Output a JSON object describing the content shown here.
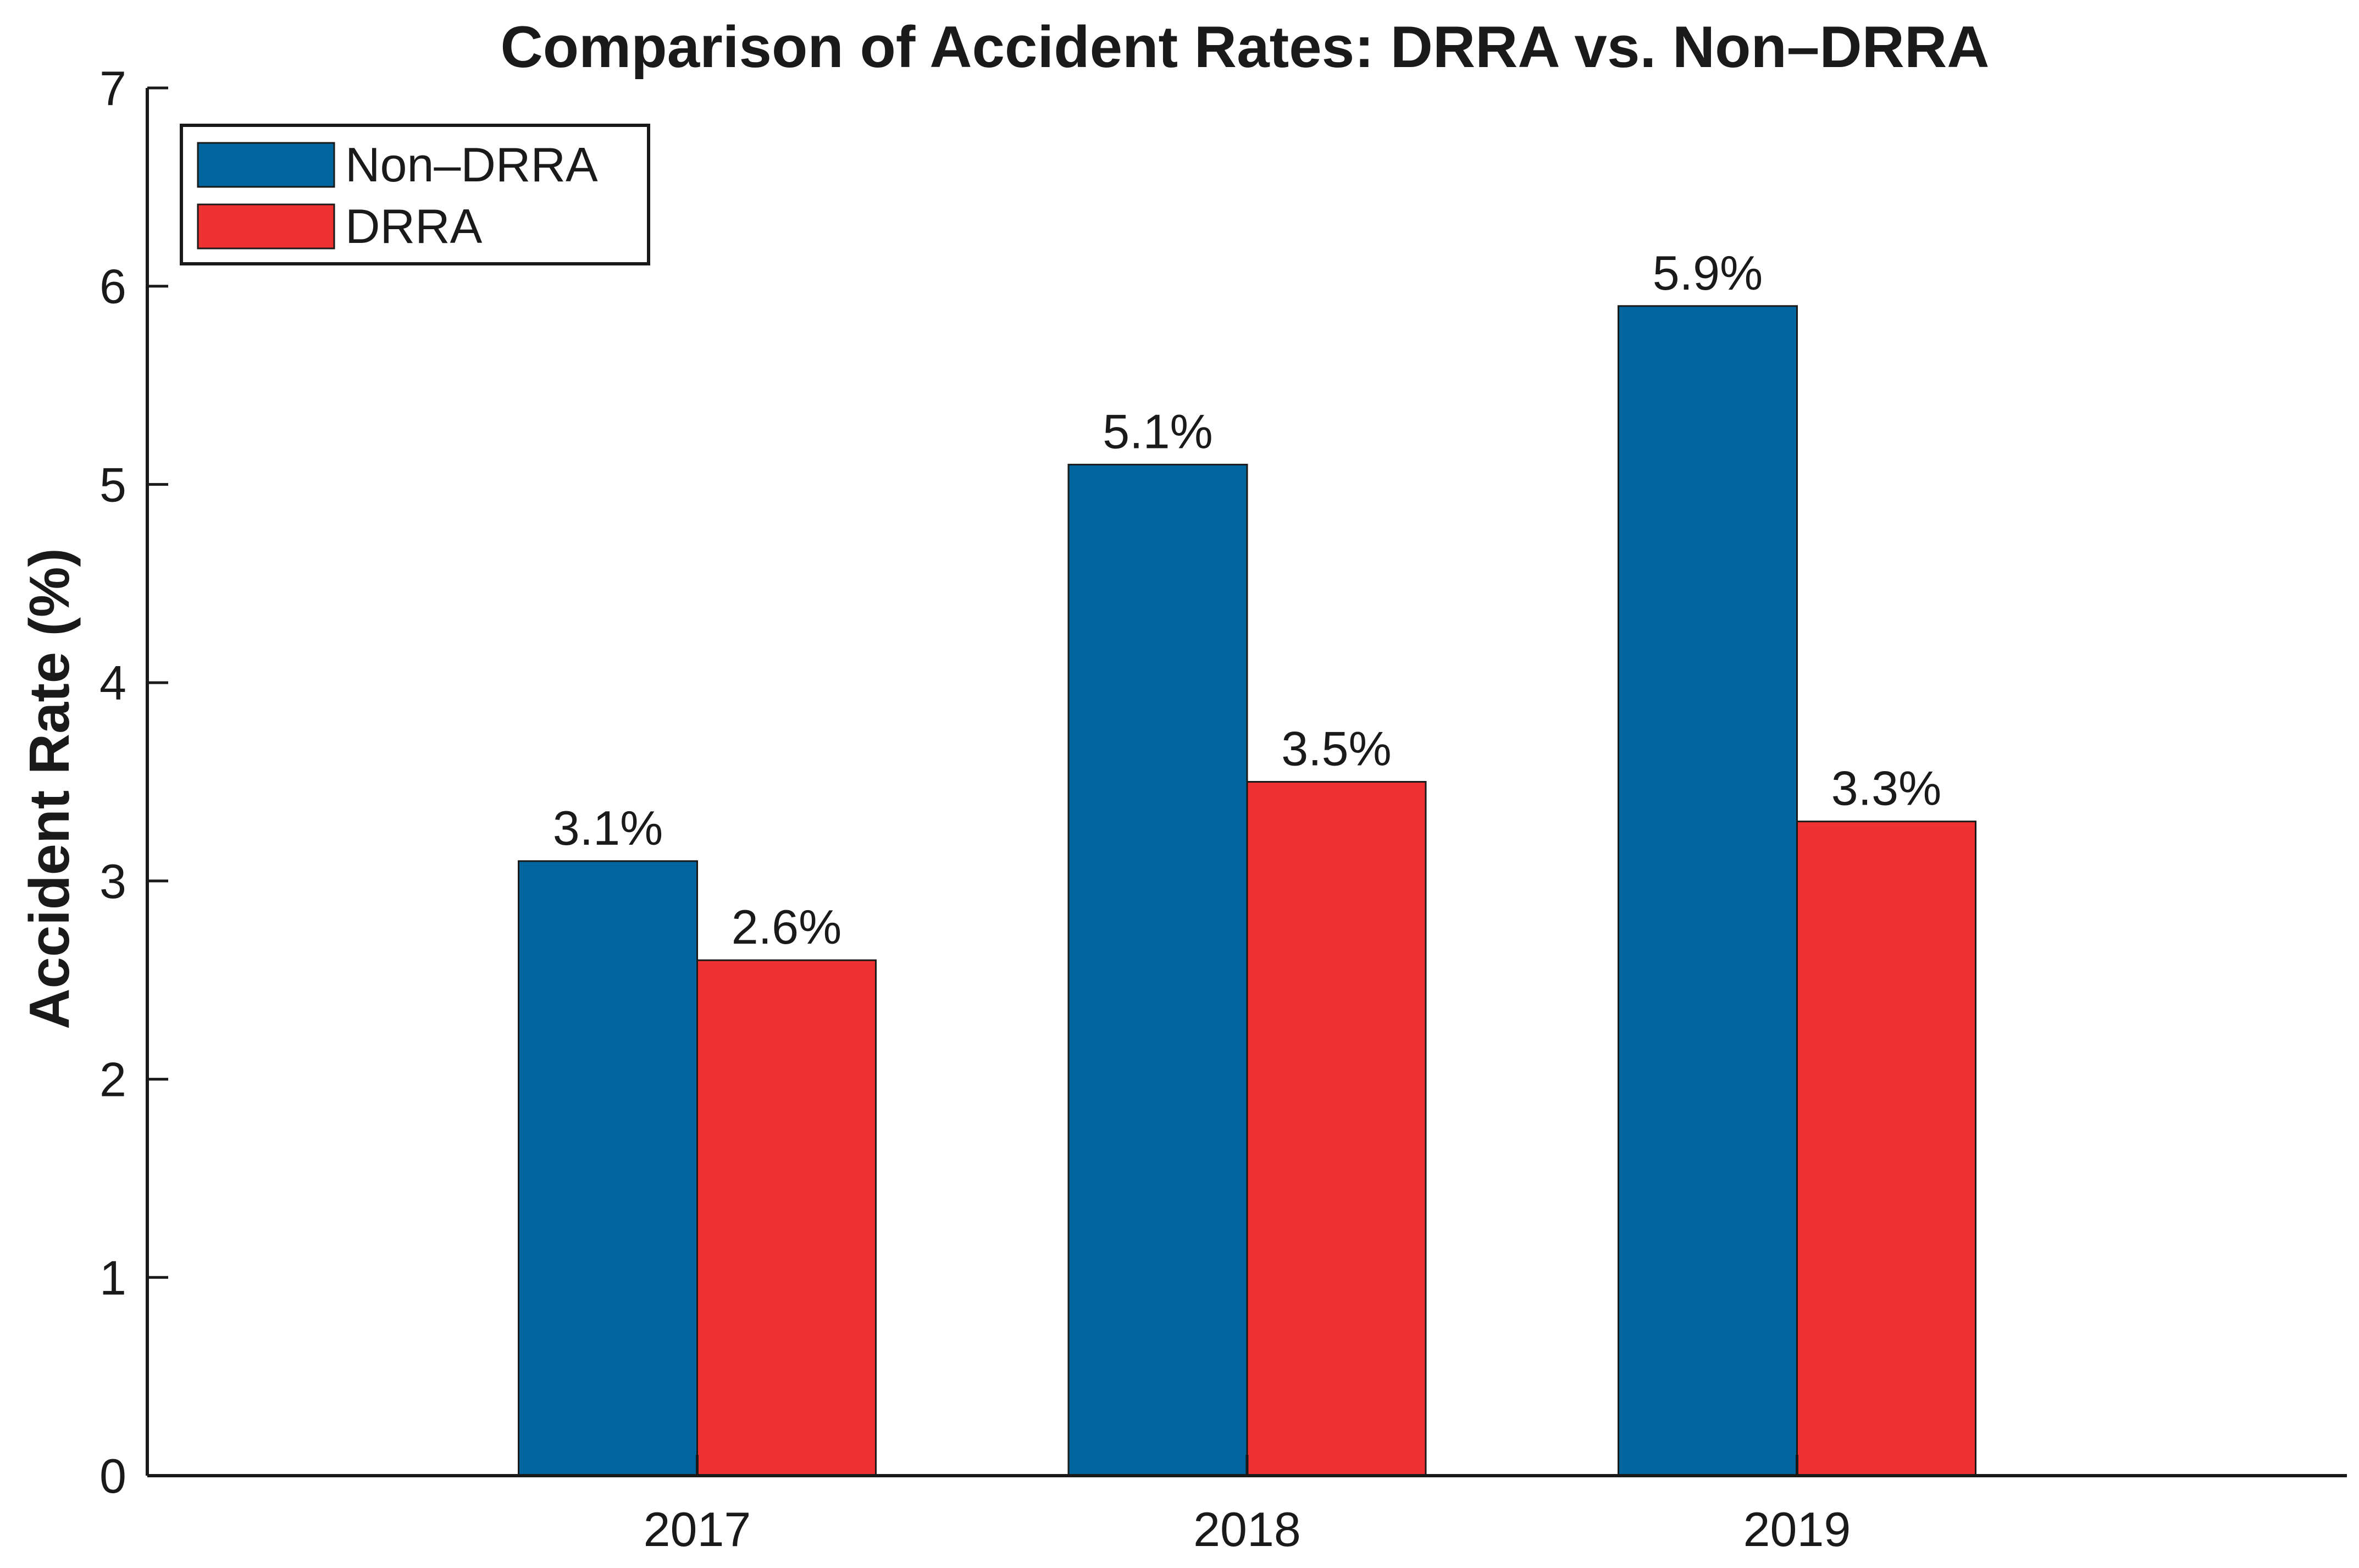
{
  "chart_data": {
    "type": "bar",
    "title": "Comparison of Accident Rates: DRRA vs. Non–DRRA",
    "xlabel": "",
    "ylabel": "Accident Rate (%)",
    "categories": [
      "2017",
      "2018",
      "2019"
    ],
    "series": [
      {
        "name": "Non–DRRA",
        "color": "#02669e",
        "values": [
          3.1,
          5.1,
          5.9
        ],
        "labels": [
          "3.1%",
          "5.1%",
          "5.9%"
        ]
      },
      {
        "name": "DRRA",
        "color": "#ee3232",
        "values": [
          2.6,
          3.5,
          3.3
        ],
        "labels": [
          "2.6%",
          "3.5%",
          "3.3%"
        ]
      }
    ],
    "ylim": [
      0,
      7
    ],
    "yticks": [
      0,
      1,
      2,
      3,
      4,
      5,
      6,
      7
    ],
    "xlim": [
      0,
      4
    ],
    "grid": false,
    "legend_position": "top-left"
  }
}
